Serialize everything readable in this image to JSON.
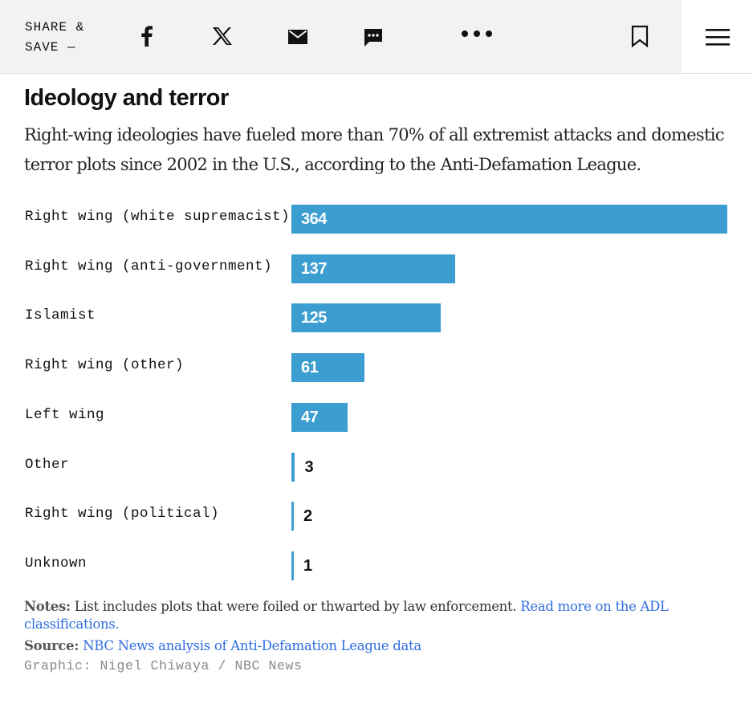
{
  "header": {
    "share_line1": "SHARE &",
    "share_line2": "SAVE —",
    "icons": [
      "facebook-icon",
      "x-icon",
      "email-icon",
      "sms-icon",
      "more-icon",
      "bookmark-icon",
      "menu-icon"
    ]
  },
  "article": {
    "headline": "Ideology and terror",
    "dek": "Right-wing ideologies have fueled more than 70% of all extremist attacks and domestic terror plots since 2002 in the U.S., according to the Anti-Defamation League."
  },
  "chart_data": {
    "type": "bar",
    "orientation": "horizontal",
    "title": "Ideology and terror",
    "categories": [
      "Right wing (white supremacist)",
      "Right wing (anti-government)",
      "Islamist",
      "Right wing (other)",
      "Left wing",
      "Other",
      "Right wing (political)",
      "Unknown"
    ],
    "values": [
      364,
      137,
      125,
      61,
      47,
      3,
      2,
      1
    ],
    "xlim": [
      0,
      364
    ],
    "bar_color": "#3b9dd0",
    "grid": false,
    "legend": "none"
  },
  "footer": {
    "notes_label": "Notes:",
    "notes_text": "List includes plots that were foiled or thwarted by law enforcement.",
    "notes_link": "Read more on the ADL classifications.",
    "source_label": "Source:",
    "source_link": "NBC News analysis of Anti-Defamation League data",
    "credit": "Graphic: Nigel Chiwaya / NBC News"
  },
  "colors": {
    "accent": "#3b9dd0",
    "link": "#2f6de1",
    "header_bg": "#f2f2f2"
  }
}
